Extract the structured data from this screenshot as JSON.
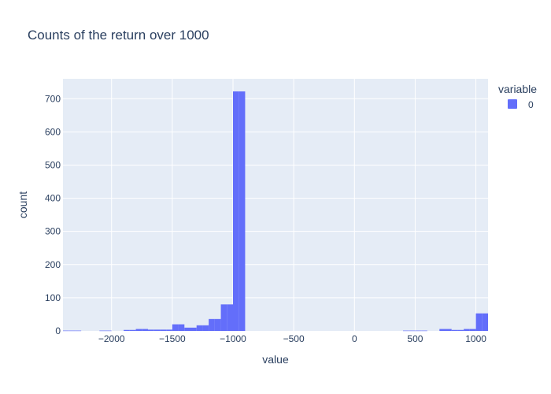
{
  "chart_data": {
    "type": "bar",
    "title": "Counts of the return over 1000",
    "xlabel": "value",
    "ylabel": "count",
    "xlim": [
      -2400,
      1100
    ],
    "ylim": [
      0,
      760
    ],
    "x_ticks": [
      -2000,
      -1500,
      -1000,
      -500,
      0,
      500,
      1000
    ],
    "y_ticks": [
      0,
      100,
      200,
      300,
      400,
      500,
      600,
      700
    ],
    "bin_width": 50,
    "legend": {
      "title": "variable",
      "entries": [
        "0"
      ],
      "placement": "top-right"
    },
    "grid": true,
    "series": [
      {
        "name": "0",
        "color": "#636efa",
        "bins": [
          {
            "x0": -2400,
            "x1": -2350,
            "count": 1
          },
          {
            "x0": -2350,
            "x1": -2300,
            "count": 1
          },
          {
            "x0": -2300,
            "x1": -2250,
            "count": 1
          },
          {
            "x0": -2100,
            "x1": -2050,
            "count": 1
          },
          {
            "x0": -2050,
            "x1": -2000,
            "count": 1
          },
          {
            "x0": -1900,
            "x1": -1850,
            "count": 3
          },
          {
            "x0": -1850,
            "x1": -1800,
            "count": 3
          },
          {
            "x0": -1800,
            "x1": -1750,
            "count": 6
          },
          {
            "x0": -1750,
            "x1": -1700,
            "count": 6
          },
          {
            "x0": -1700,
            "x1": -1650,
            "count": 4
          },
          {
            "x0": -1650,
            "x1": -1600,
            "count": 4
          },
          {
            "x0": -1600,
            "x1": -1550,
            "count": 4
          },
          {
            "x0": -1550,
            "x1": -1500,
            "count": 4
          },
          {
            "x0": -1500,
            "x1": -1450,
            "count": 20
          },
          {
            "x0": -1450,
            "x1": -1400,
            "count": 20
          },
          {
            "x0": -1400,
            "x1": -1350,
            "count": 10
          },
          {
            "x0": -1350,
            "x1": -1300,
            "count": 10
          },
          {
            "x0": -1300,
            "x1": -1250,
            "count": 17
          },
          {
            "x0": -1250,
            "x1": -1200,
            "count": 17
          },
          {
            "x0": -1200,
            "x1": -1150,
            "count": 36
          },
          {
            "x0": -1150,
            "x1": -1100,
            "count": 36
          },
          {
            "x0": -1100,
            "x1": -1050,
            "count": 80
          },
          {
            "x0": -1050,
            "x1": -1000,
            "count": 80
          },
          {
            "x0": -1000,
            "x1": -950,
            "count": 722
          },
          {
            "x0": -950,
            "x1": -900,
            "count": 722
          },
          {
            "x0": 400,
            "x1": 450,
            "count": 1
          },
          {
            "x0": 450,
            "x1": 500,
            "count": 1
          },
          {
            "x0": 500,
            "x1": 550,
            "count": 1
          },
          {
            "x0": 550,
            "x1": 600,
            "count": 1
          },
          {
            "x0": 700,
            "x1": 750,
            "count": 6
          },
          {
            "x0": 750,
            "x1": 800,
            "count": 6
          },
          {
            "x0": 800,
            "x1": 850,
            "count": 3
          },
          {
            "x0": 850,
            "x1": 900,
            "count": 3
          },
          {
            "x0": 900,
            "x1": 950,
            "count": 6
          },
          {
            "x0": 950,
            "x1": 1000,
            "count": 6
          },
          {
            "x0": 1000,
            "x1": 1050,
            "count": 53
          },
          {
            "x0": 1050,
            "x1": 1100,
            "count": 53
          }
        ]
      }
    ]
  }
}
